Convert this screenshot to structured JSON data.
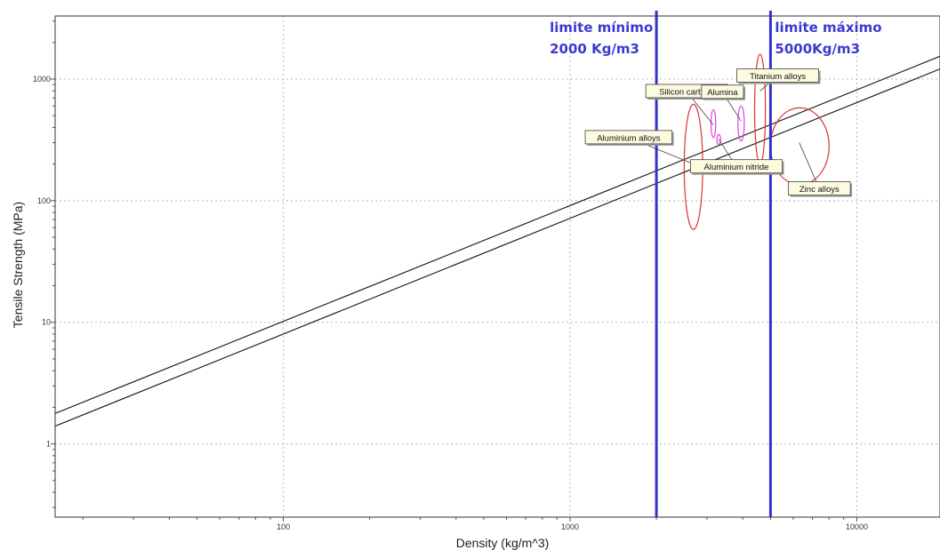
{
  "chart_data": {
    "type": "scatter",
    "xlabel": "Density (kg/m^3)",
    "ylabel": "Tensile Strength (MPa)",
    "x_scale": "log",
    "y_scale": "log",
    "xlim": [
      16,
      19500
    ],
    "ylim": [
      0.25,
      3300
    ],
    "x_ticks": [
      {
        "value": 100,
        "label": "100"
      },
      {
        "value": 1000,
        "label": "1000"
      },
      {
        "value": 10000,
        "label": "10000"
      }
    ],
    "y_ticks": [
      {
        "value": 1,
        "label": "1"
      },
      {
        "value": 10,
        "label": "10"
      },
      {
        "value": 100,
        "label": "100"
      },
      {
        "value": 1000,
        "label": "1000"
      }
    ],
    "grid": true,
    "guide_lines": [
      {
        "x": [
          16,
          19500
        ],
        "y": [
          1.78,
          1540
        ]
      },
      {
        "x": [
          16,
          19500
        ],
        "y": [
          1.4,
          1210
        ]
      }
    ],
    "limits": [
      {
        "x": 2000,
        "line1": "limite mínimo",
        "line2": "2000 Kg/m3",
        "color": "#3333cc"
      },
      {
        "x": 5000,
        "line1": "limite máximo",
        "line2": "5000Kg/m3",
        "color": "#3333cc"
      }
    ],
    "materials": [
      {
        "name": "Aluminium alloys",
        "x": 2700,
        "y": 200,
        "x_range": [
          2500,
          2900
        ],
        "y_range": [
          58,
          620
        ],
        "color": "#e03030",
        "label_at": [
          1600,
          330
        ]
      },
      {
        "name": "Silicon carbide",
        "x": 3160,
        "y": 420,
        "x_range": [
          3100,
          3220
        ],
        "y_range": [
          330,
          560
        ],
        "color": "#e040e0",
        "label_at": [
          2550,
          790
        ]
      },
      {
        "name": "Alumina",
        "x": 3950,
        "y": 450,
        "x_range": [
          3850,
          4050
        ],
        "y_range": [
          310,
          600
        ],
        "color": "#e040e0",
        "label_at": [
          3400,
          780
        ]
      },
      {
        "name": "Aluminium nitride",
        "x": 3300,
        "y": 320,
        "x_range": [
          3250,
          3350
        ],
        "y_range": [
          290,
          350
        ],
        "color": "#e040e0",
        "label_at": [
          3800,
          190
        ]
      },
      {
        "name": "Titanium alloys",
        "x": 4600,
        "y": 800,
        "x_range": [
          4400,
          4800
        ],
        "y_range": [
          200,
          1600
        ],
        "color": "#e03030",
        "label_at": [
          5300,
          1060
        ]
      },
      {
        "name": "Zinc alloys",
        "x": 6300,
        "y": 300,
        "x_range": [
          5000,
          8000
        ],
        "y_range": [
          135,
          580
        ],
        "color": "#e03030",
        "label_at": [
          7400,
          125
        ]
      }
    ]
  }
}
